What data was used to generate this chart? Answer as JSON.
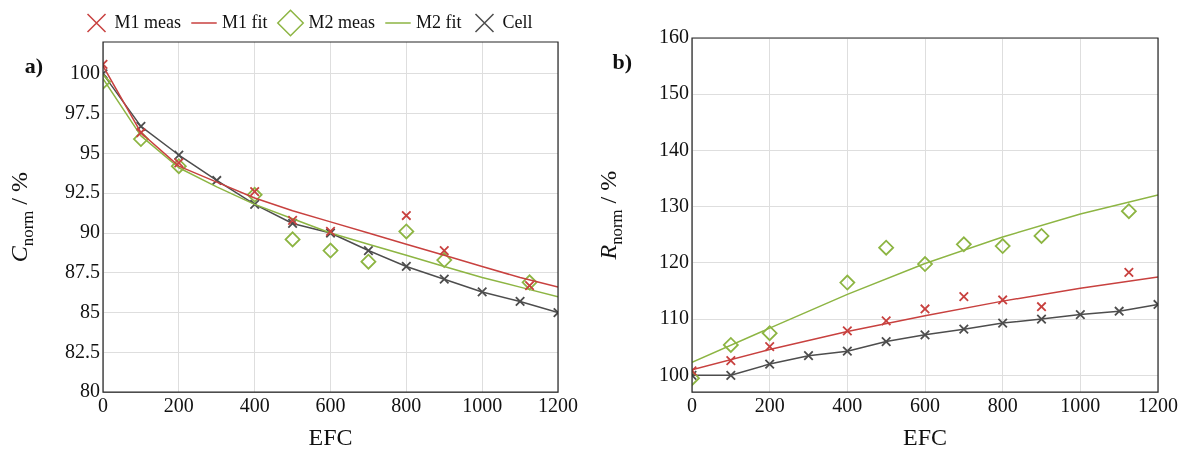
{
  "chart_data": [
    {
      "type": "line",
      "xlabel": "EFC",
      "ylabel": "C$_{norm}$ / %",
      "annotations": [
        "a)"
      ],
      "xlim": [
        0,
        1200
      ],
      "xticks": [
        0,
        200,
        400,
        600,
        800,
        1000,
        1200
      ],
      "ylim": [
        80,
        102
      ],
      "yticks": [
        80,
        82.5,
        85,
        87.5,
        90,
        92.5,
        95,
        97.5,
        100
      ],
      "grid": true,
      "legend": "top",
      "series": [
        {
          "name": "M1 meas",
          "type": "scatter",
          "marker": "cross",
          "color": "#c8413f",
          "x": [
            0,
            100,
            200,
            400,
            500,
            600,
            800,
            900,
            1125
          ],
          "values": [
            100.6,
            96.3,
            94.4,
            92.6,
            90.8,
            90.1,
            91.1,
            88.9,
            86.7
          ]
        },
        {
          "name": "M1 fit",
          "type": "line",
          "marker": "none",
          "color": "#c8413f",
          "x": [
            0,
            100,
            200,
            300,
            400,
            500,
            600,
            700,
            800,
            900,
            1000,
            1100,
            1200
          ],
          "values": [
            100.5,
            96.3,
            94.2,
            93.2,
            92.2,
            91.4,
            90.7,
            90.0,
            89.3,
            88.6,
            87.9,
            87.2,
            86.6
          ]
        },
        {
          "name": "M2 meas",
          "type": "scatter",
          "marker": "diamond",
          "color": "#8db543",
          "x": [
            0,
            100,
            200,
            400,
            500,
            600,
            700,
            800,
            900,
            1125
          ],
          "values": [
            99.5,
            95.9,
            94.2,
            92.4,
            89.6,
            88.9,
            88.2,
            90.1,
            88.3,
            86.9
          ]
        },
        {
          "name": "M2 fit",
          "type": "line",
          "marker": "none",
          "color": "#8db543",
          "x": [
            0,
            100,
            200,
            300,
            400,
            500,
            600,
            700,
            800,
            900,
            1000,
            1100,
            1200
          ],
          "values": [
            99.7,
            96.1,
            94.1,
            92.9,
            91.8,
            90.9,
            90.0,
            89.3,
            88.6,
            87.9,
            87.2,
            86.6,
            86.0
          ]
        },
        {
          "name": "Cell",
          "type": "line",
          "marker": "cross",
          "color": "#4d4d4d",
          "x": [
            0,
            100,
            200,
            300,
            400,
            500,
            600,
            700,
            800,
            900,
            1000,
            1100,
            1200
          ],
          "values": [
            100,
            96.7,
            94.9,
            93.3,
            91.8,
            90.6,
            90.0,
            88.9,
            87.9,
            87.1,
            86.3,
            85.7,
            85.0
          ]
        }
      ]
    },
    {
      "type": "line",
      "xlabel": "EFC",
      "ylabel": "R$_{norm}$ / %",
      "annotations": [
        "b)"
      ],
      "xlim": [
        0,
        1200
      ],
      "xticks": [
        0,
        200,
        400,
        600,
        800,
        1000,
        1200
      ],
      "ylim": [
        97,
        160
      ],
      "yticks": [
        100,
        110,
        120,
        130,
        140,
        150,
        160
      ],
      "grid": true,
      "series": [
        {
          "type": "scatter",
          "marker": "cross",
          "color": "#c8413f",
          "x": [
            0,
            100,
            200,
            400,
            500,
            600,
            700,
            800,
            900,
            1125
          ],
          "values": [
            100.8,
            102.6,
            105.1,
            107.9,
            109.7,
            111.8,
            114.0,
            113.4,
            112.2,
            118.3
          ]
        },
        {
          "type": "line",
          "marker": "none",
          "color": "#c8413f",
          "x": [
            0,
            200,
            400,
            600,
            800,
            1000,
            1200
          ],
          "values": [
            101,
            104.6,
            107.8,
            110.6,
            113.2,
            115.5,
            117.5
          ]
        },
        {
          "type": "scatter",
          "marker": "diamond",
          "color": "#8db543",
          "x": [
            0,
            100,
            200,
            400,
            500,
            600,
            700,
            800,
            900,
            1125
          ],
          "values": [
            99.5,
            105.4,
            107.5,
            116.5,
            122.7,
            119.8,
            123.3,
            123.0,
            124.8,
            129.2
          ]
        },
        {
          "type": "line",
          "marker": "none",
          "color": "#8db543",
          "x": [
            0,
            200,
            400,
            600,
            800,
            1000,
            1200
          ],
          "values": [
            102.3,
            108.4,
            114.4,
            119.9,
            124.6,
            128.7,
            132.1
          ]
        },
        {
          "type": "line",
          "marker": "cross",
          "color": "#4d4d4d",
          "x": [
            0,
            100,
            200,
            300,
            400,
            500,
            600,
            700,
            800,
            900,
            1000,
            1100,
            1200
          ],
          "values": [
            100,
            100,
            102,
            103.5,
            104.3,
            106,
            107.2,
            108.2,
            109.3,
            110,
            110.8,
            111.4,
            112.6
          ]
        }
      ]
    }
  ]
}
